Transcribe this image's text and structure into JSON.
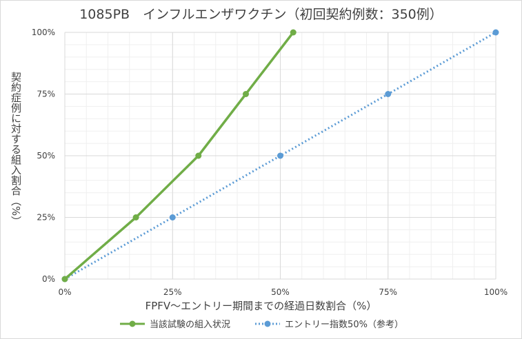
{
  "chart_data": {
    "type": "line",
    "title": "1085PB　インフルエンザワクチン（初回契約例数：350例）",
    "xlabel": "FPFV～エントリー期間までの経過日数割合（%）",
    "ylabel": "契約症例に対する組入割合（%）",
    "xlim": [
      0,
      100
    ],
    "ylim": [
      0,
      100
    ],
    "x_ticks": [
      "0%",
      "25%",
      "50%",
      "75%",
      "100%"
    ],
    "y_ticks": [
      "0%",
      "25%",
      "50%",
      "75%",
      "100%"
    ],
    "grid": true,
    "legend_position": "bottom",
    "series": [
      {
        "name": "当該試験の組入状況",
        "color": "#70ad47",
        "style": "solid",
        "points": [
          {
            "x": 0,
            "y": 0
          },
          {
            "x": 16.5,
            "y": 25
          },
          {
            "x": 31,
            "y": 50
          },
          {
            "x": 42,
            "y": 75
          },
          {
            "x": 53,
            "y": 100
          }
        ]
      },
      {
        "name": "エントリー指数50%（参考）",
        "color": "#5b9bd5",
        "style": "dotted",
        "points": [
          {
            "x": 0,
            "y": 0
          },
          {
            "x": 25,
            "y": 25
          },
          {
            "x": 50,
            "y": 50
          },
          {
            "x": 75,
            "y": 75
          },
          {
            "x": 100,
            "y": 100
          }
        ]
      }
    ]
  }
}
